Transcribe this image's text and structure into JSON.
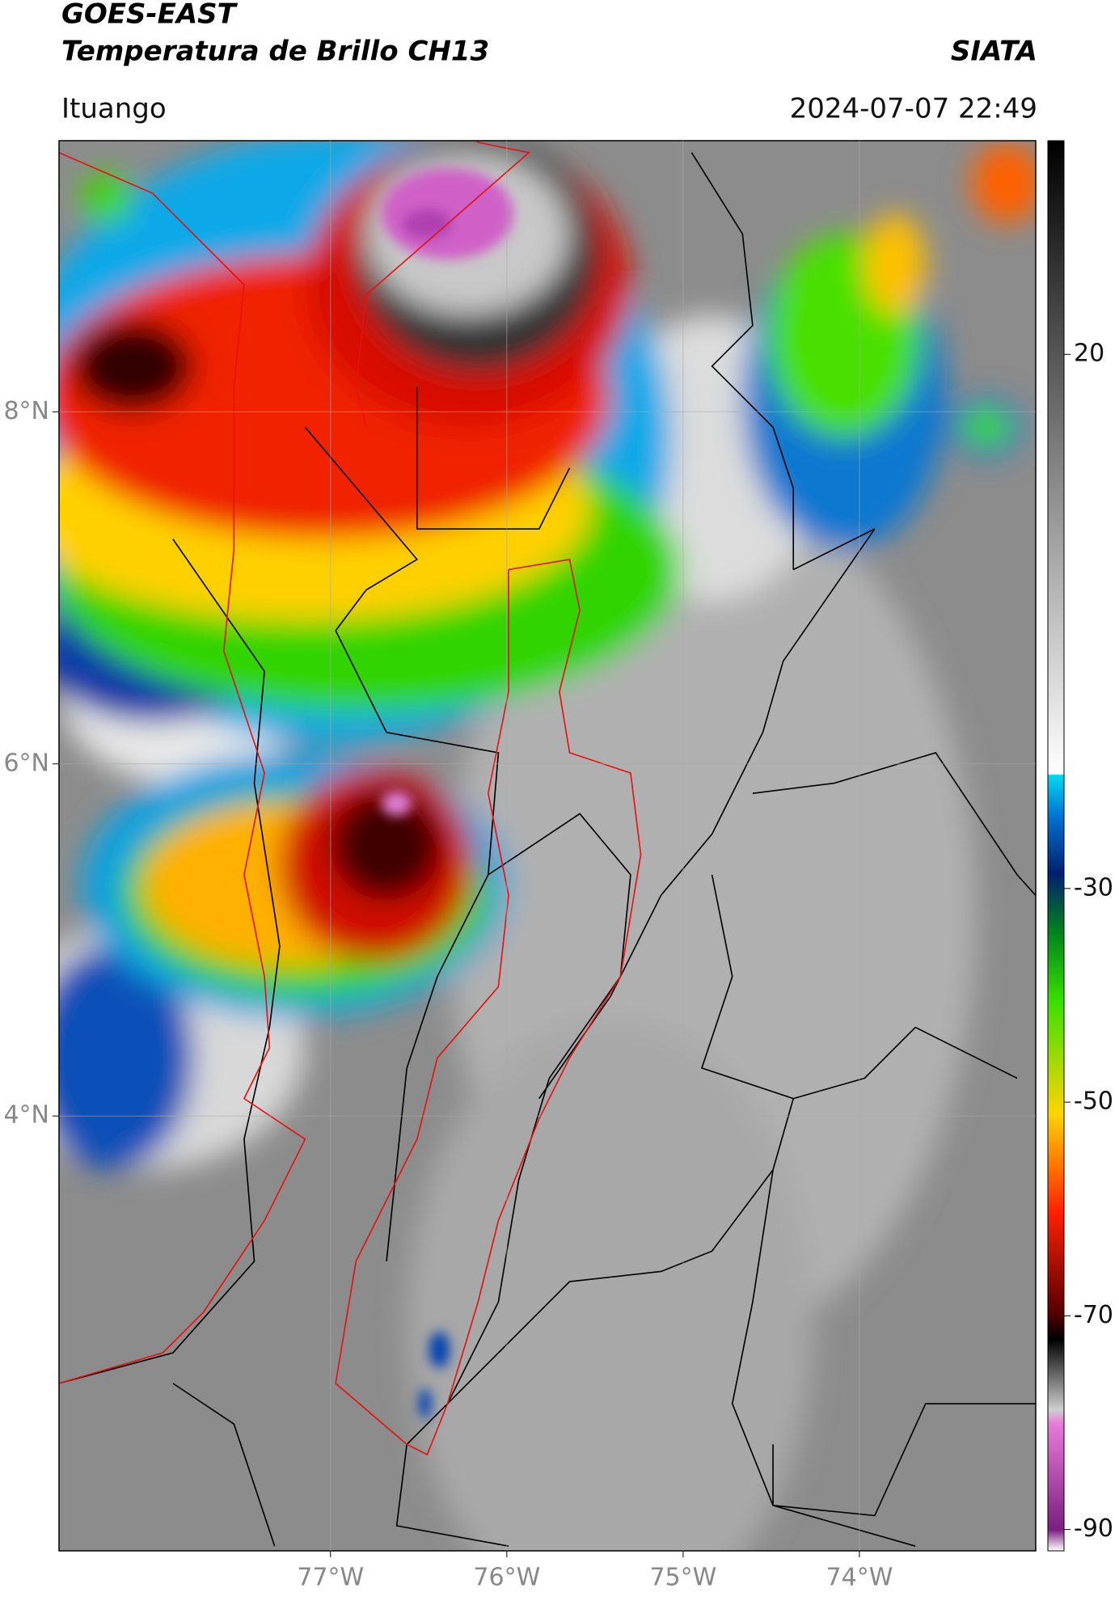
{
  "chart_data": {
    "type": "map",
    "title": "GOES-EAST",
    "subtitle": "Temperatura de Brillo CH13",
    "source": "SIATA",
    "location": "Ituango",
    "datetime": "2024-07-07 22:49",
    "xlim": [
      -78.54,
      -73.0
    ],
    "ylim": [
      1.53,
      9.54
    ],
    "xticks": [
      {
        "value": -77,
        "label": "77°W"
      },
      {
        "value": -76,
        "label": "76°W"
      },
      {
        "value": -75,
        "label": "75°W"
      },
      {
        "value": -74,
        "label": "74°W"
      }
    ],
    "yticks": [
      {
        "value": 4,
        "label": "4°N"
      },
      {
        "value": 6,
        "label": "6°N"
      },
      {
        "value": 8,
        "label": "8°N"
      }
    ],
    "grid": true,
    "colorbar": {
      "lim": [
        -92,
        40
      ],
      "ticks": [
        20,
        -30,
        -50,
        -70,
        -90
      ]
    }
  }
}
